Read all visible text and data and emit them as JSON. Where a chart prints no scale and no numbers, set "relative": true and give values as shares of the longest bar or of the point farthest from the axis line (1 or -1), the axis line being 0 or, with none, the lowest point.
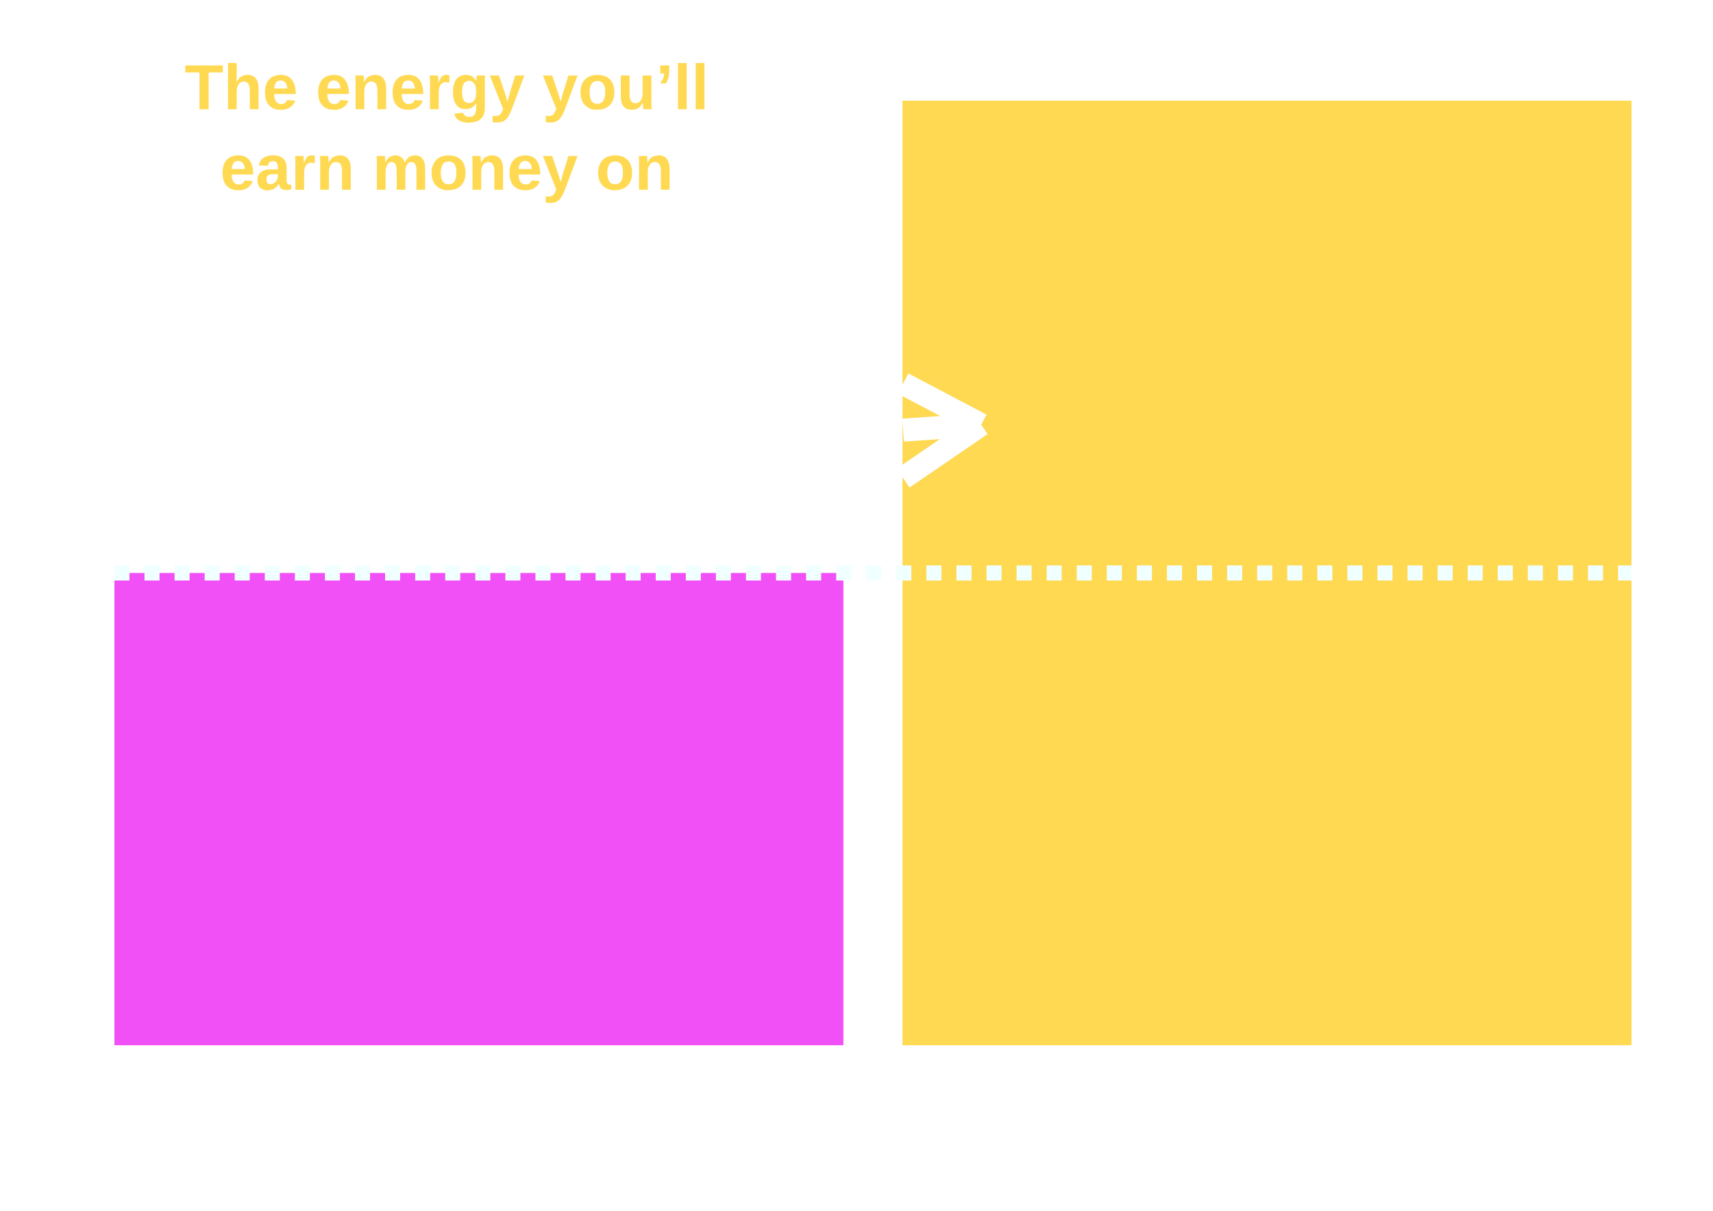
{
  "chart_data": {
    "type": "bar",
    "title": "The energy you’ll\nearn money on",
    "categories": [
      null,
      null
    ],
    "values": [
      0.5,
      1
    ],
    "colors": [
      "#f150f7",
      "#ffd952"
    ],
    "relative": true,
    "ref_lines": [
      {
        "axis": "y",
        "value": 0.5,
        "color": "#f0ffff",
        "line_style": "dotted"
      }
    ]
  }
}
